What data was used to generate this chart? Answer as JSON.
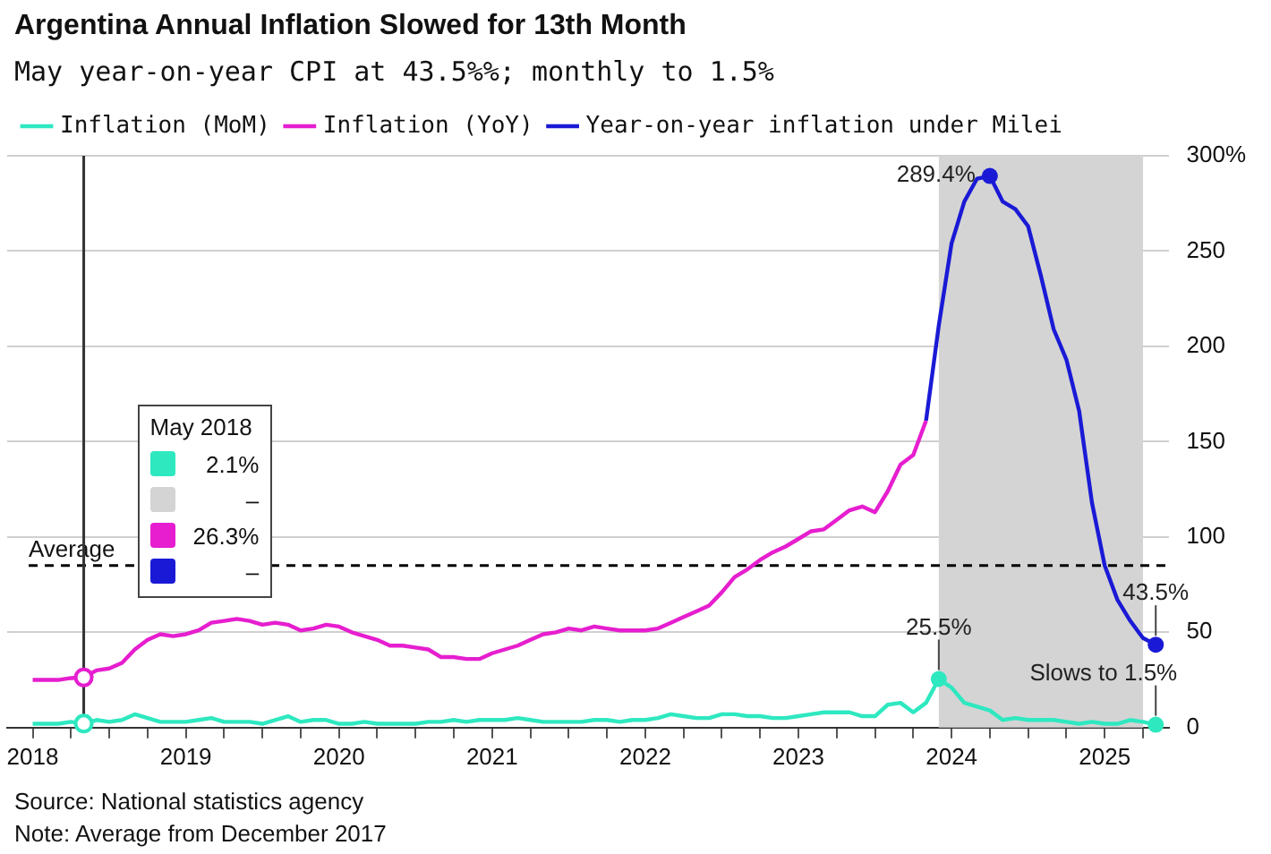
{
  "chart_data": {
    "type": "line",
    "title": "Argentina Annual Inflation Slowed for 13th Month",
    "subtitle": "May year-on-year CPI at 43.5%%; monthly to 1.5%",
    "legend": "top left",
    "grid": "y",
    "marker": "none",
    "line_style": "solid",
    "xlim": [
      "2017-11",
      "2025-06"
    ],
    "xticks": [
      {
        "value": "2018-01",
        "label": "2018"
      },
      {
        "value": "2018-04",
        "label": null
      },
      {
        "value": "2018-07",
        "label": null
      },
      {
        "value": "2018-10",
        "label": null
      },
      {
        "value": "2019-01",
        "label": "2019"
      },
      {
        "value": "2019-04",
        "label": null
      },
      {
        "value": "2019-07",
        "label": null
      },
      {
        "value": "2019-10",
        "label": null
      },
      {
        "value": "2020-01",
        "label": "2020"
      },
      {
        "value": "2020-04",
        "label": null
      },
      {
        "value": "2020-07",
        "label": null
      },
      {
        "value": "2020-10",
        "label": null
      },
      {
        "value": "2021-01",
        "label": "2021"
      },
      {
        "value": "2021-04",
        "label": null
      },
      {
        "value": "2021-07",
        "label": null
      },
      {
        "value": "2021-10",
        "label": null
      },
      {
        "value": "2022-01",
        "label": "2022"
      },
      {
        "value": "2022-04",
        "label": null
      },
      {
        "value": "2022-07",
        "label": null
      },
      {
        "value": "2022-10",
        "label": null
      },
      {
        "value": "2023-01",
        "label": "2023"
      },
      {
        "value": "2023-04",
        "label": null
      },
      {
        "value": "2023-07",
        "label": null
      },
      {
        "value": "2023-10",
        "label": null
      },
      {
        "value": "2024-01",
        "label": "2024"
      },
      {
        "value": "2024-04",
        "label": null
      },
      {
        "value": "2024-07",
        "label": null
      },
      {
        "value": "2024-10",
        "label": null
      },
      {
        "value": "2025-01",
        "label": "2025"
      },
      {
        "value": "2025-04",
        "label": null
      }
    ],
    "ylim": [
      0,
      300
    ],
    "yticks": [
      0,
      50,
      100,
      150,
      200,
      250,
      {
        "value": 300,
        "label": "300%"
      }
    ],
    "series": [
      {
        "name": "Inflation (MoM)",
        "color": "#2ee8c0",
        "x": [
          "2018-01",
          "2018-02",
          "2018-03",
          "2018-04",
          "2018-05",
          "2018-06",
          "2018-07",
          "2018-08",
          "2018-09",
          "2018-10",
          "2018-11",
          "2018-12",
          "2019-01",
          "2019-02",
          "2019-03",
          "2019-04",
          "2019-05",
          "2019-06",
          "2019-07",
          "2019-08",
          "2019-09",
          "2019-10",
          "2019-11",
          "2019-12",
          "2020-01",
          "2020-02",
          "2020-03",
          "2020-04",
          "2020-05",
          "2020-06",
          "2020-07",
          "2020-08",
          "2020-09",
          "2020-10",
          "2020-11",
          "2020-12",
          "2021-01",
          "2021-02",
          "2021-03",
          "2021-04",
          "2021-05",
          "2021-06",
          "2021-07",
          "2021-08",
          "2021-09",
          "2021-10",
          "2021-11",
          "2021-12",
          "2022-01",
          "2022-02",
          "2022-03",
          "2022-04",
          "2022-05",
          "2022-06",
          "2022-07",
          "2022-08",
          "2022-09",
          "2022-10",
          "2022-11",
          "2022-12",
          "2023-01",
          "2023-02",
          "2023-03",
          "2023-04",
          "2023-05",
          "2023-06",
          "2023-07",
          "2023-08",
          "2023-09",
          "2023-10",
          "2023-11",
          "2023-12",
          "2024-01",
          "2024-02",
          "2024-03",
          "2024-04",
          "2024-05",
          "2024-06",
          "2024-07",
          "2024-08",
          "2024-09",
          "2024-10",
          "2024-11",
          "2024-12",
          "2025-01",
          "2025-02",
          "2025-03",
          "2025-04",
          "2025-05"
        ],
        "values": [
          2,
          2,
          2,
          3,
          2.1,
          4,
          3,
          4,
          7,
          5,
          3,
          3,
          3,
          4,
          5,
          3,
          3,
          3,
          2,
          4,
          6,
          3,
          4,
          4,
          2,
          2,
          3,
          2,
          2,
          2,
          2,
          3,
          3,
          4,
          3,
          4,
          4,
          4,
          5,
          4,
          3,
          3,
          3,
          3,
          4,
          4,
          3,
          4,
          4,
          5,
          7,
          6,
          5,
          5,
          7,
          7,
          6,
          6,
          5,
          5,
          6,
          7,
          8,
          8,
          8,
          6,
          6,
          12,
          13,
          8,
          13,
          25.5,
          21,
          13,
          11,
          9,
          4,
          5,
          4,
          4,
          4,
          3,
          2,
          3,
          2,
          2,
          4,
          3,
          1.5
        ]
      },
      {
        "name": "Inflation (YoY)",
        "color": "#e61ecf",
        "x": [
          "2018-01",
          "2018-02",
          "2018-03",
          "2018-04",
          "2018-05",
          "2018-06",
          "2018-07",
          "2018-08",
          "2018-09",
          "2018-10",
          "2018-11",
          "2018-12",
          "2019-01",
          "2019-02",
          "2019-03",
          "2019-04",
          "2019-05",
          "2019-06",
          "2019-07",
          "2019-08",
          "2019-09",
          "2019-10",
          "2019-11",
          "2019-12",
          "2020-01",
          "2020-02",
          "2020-03",
          "2020-04",
          "2020-05",
          "2020-06",
          "2020-07",
          "2020-08",
          "2020-09",
          "2020-10",
          "2020-11",
          "2020-12",
          "2021-01",
          "2021-02",
          "2021-03",
          "2021-04",
          "2021-05",
          "2021-06",
          "2021-07",
          "2021-08",
          "2021-09",
          "2021-10",
          "2021-11",
          "2021-12",
          "2022-01",
          "2022-02",
          "2022-03",
          "2022-04",
          "2022-05",
          "2022-06",
          "2022-07",
          "2022-08",
          "2022-09",
          "2022-10",
          "2022-11",
          "2022-12",
          "2023-01",
          "2023-02",
          "2023-03",
          "2023-04",
          "2023-05",
          "2023-06",
          "2023-07",
          "2023-08",
          "2023-09",
          "2023-10",
          "2023-11"
        ],
        "values": [
          25,
          25,
          25,
          26,
          26.3,
          30,
          31,
          34,
          41,
          46,
          49,
          48,
          49,
          51,
          55,
          56,
          57,
          56,
          54,
          55,
          54,
          51,
          52,
          54,
          53,
          50,
          48,
          46,
          43,
          43,
          42,
          41,
          37,
          37,
          36,
          36,
          39,
          41,
          43,
          46,
          49,
          50,
          52,
          51,
          53,
          52,
          51,
          51,
          51,
          52,
          55,
          58,
          61,
          64,
          71,
          79,
          83,
          88,
          92,
          95,
          99,
          103,
          104,
          109,
          114,
          116,
          113,
          124,
          138,
          143,
          161
        ]
      },
      {
        "name": "Year-on-year inflation under Milei",
        "color": "#1a1ad6",
        "x": [
          "2023-11",
          "2023-12",
          "2024-01",
          "2024-02",
          "2024-03",
          "2024-04",
          "2024-05",
          "2024-06",
          "2024-07",
          "2024-08",
          "2024-09",
          "2024-10",
          "2024-11",
          "2024-12",
          "2025-01",
          "2025-02",
          "2025-03",
          "2025-04",
          "2025-05"
        ],
        "values": [
          161,
          211,
          254,
          276,
          288,
          289.4,
          276,
          272,
          263,
          237,
          209,
          193,
          166,
          118,
          85,
          67,
          56,
          47,
          43.5
        ]
      }
    ],
    "bands": [
      {
        "axis": "x",
        "from": "2023-12",
        "to": "2025-04",
        "color": "#d4d4d4"
      }
    ],
    "ref_lines": [
      {
        "axis": "y",
        "value": 85,
        "label": "Average",
        "color": "#000000",
        "line_style": "dashed"
      },
      {
        "axis": "x",
        "value": "2018-05",
        "color": "#333333",
        "line_style": "solid"
      }
    ],
    "annotations": [
      {
        "text": "289.4%",
        "x": "2024-04",
        "y": 289.4
      },
      {
        "text": "43.5%",
        "x": "2025-05",
        "y": 43.5
      },
      {
        "text": "25.5%",
        "x": "2023-12",
        "y": 25.5
      },
      {
        "text": "Slows to 1.5%",
        "x": "2025-05",
        "y": 1.5
      },
      "May 2018",
      "2.1%",
      "–",
      "26.3%",
      "–",
      "Source: National statistics agency",
      "Note: Average from December 2017"
    ]
  }
}
